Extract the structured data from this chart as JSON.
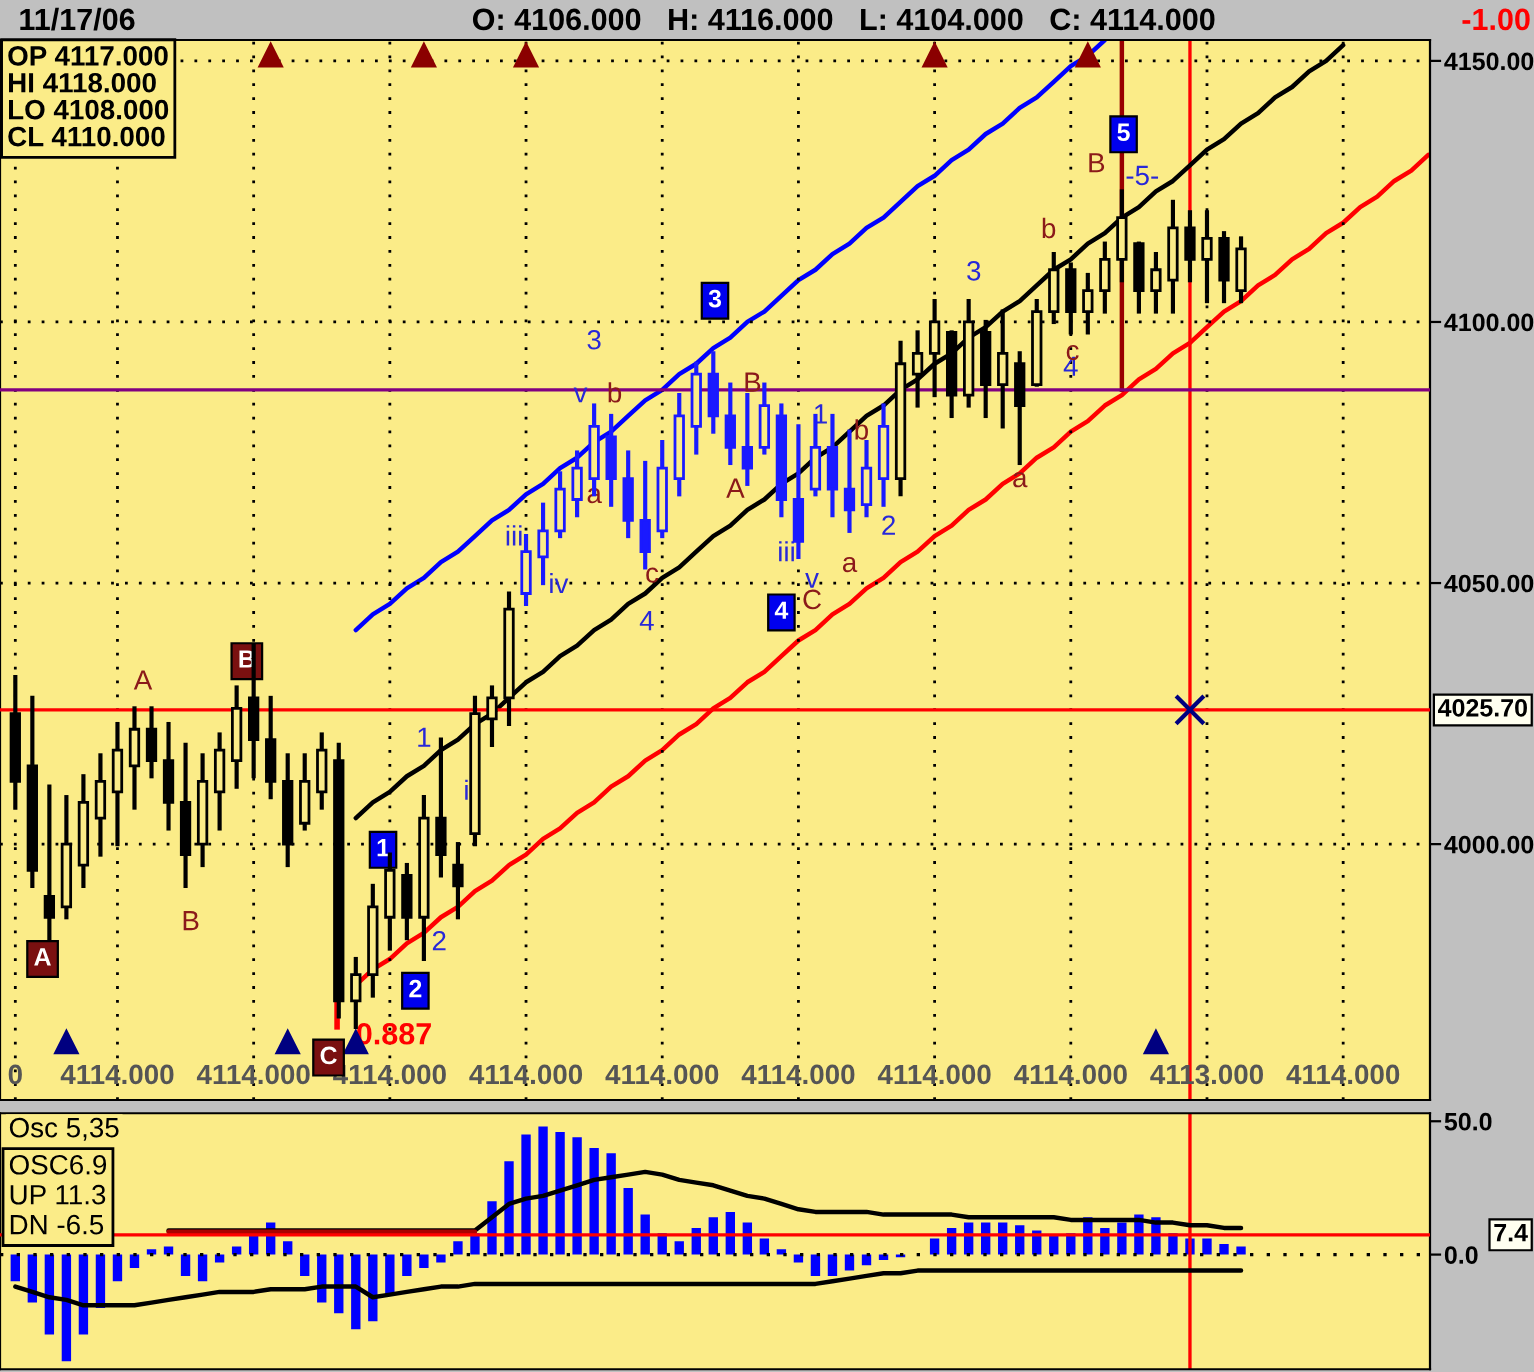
{
  "chart_data": [
    {
      "type": "candlestick",
      "title": "11/17/06",
      "subtitle": "O: 4106.000   H: 4116.000   L: 4104.000   C: 4114.000",
      "annotations": [
        "OP 4117.000\nHI 4118.000\nLO 4108.000\nCL 4110.000",
        "-1.00",
        "0.887",
        "1",
        "i",
        "2",
        "iii",
        "iv",
        "3",
        "v",
        "4",
        "iii",
        "v",
        "1",
        "2",
        "3",
        "4",
        "-5-",
        "A",
        "B",
        "a",
        "b",
        "c",
        "A",
        "B",
        "b",
        "a",
        "C",
        "a",
        "b",
        "c",
        "B",
        "1",
        "2",
        "3",
        "4",
        "5",
        "A",
        "B",
        "C"
      ],
      "categories": [
        "0",
        null,
        null,
        null,
        null,
        null,
        "4114.000",
        null,
        null,
        null,
        null,
        null,
        null,
        null,
        "4114.000",
        null,
        null,
        null,
        null,
        null,
        null,
        null,
        "4114.000",
        null,
        null,
        null,
        null,
        null,
        null,
        null,
        "4114.000",
        null,
        null,
        null,
        null,
        null,
        null,
        null,
        "4114.000",
        null,
        null,
        null,
        null,
        null,
        null,
        null,
        "4114.000",
        null,
        null,
        null,
        null,
        null,
        null,
        null,
        "4114.000",
        null,
        null,
        null,
        null,
        null,
        null,
        null,
        "4114.000",
        null,
        null,
        null,
        null,
        null,
        null,
        null,
        "4113.000",
        null,
        null,
        null,
        null,
        null,
        null,
        null,
        "4114.000",
        null,
        null,
        null,
        null,
        null
      ],
      "ohlc": [
        [
          4025,
          4032,
          4007,
          4012
        ],
        [
          4015,
          4028,
          3992,
          3995
        ],
        [
          3990,
          4011,
          3982,
          3986
        ],
        [
          3988,
          4009,
          3986,
          4000
        ],
        [
          3996,
          4013,
          3992,
          4008
        ],
        [
          4005,
          4017,
          3998,
          4012
        ],
        [
          4010,
          4023,
          4000,
          4018
        ],
        [
          4015,
          4026,
          4007,
          4022
        ],
        [
          4022,
          4026,
          4013,
          4016
        ],
        [
          4016,
          4023,
          4003,
          4008
        ],
        [
          4008,
          4019,
          3992,
          3998
        ],
        [
          4000,
          4017,
          3996,
          4012
        ],
        [
          4010,
          4021,
          4003,
          4018
        ],
        [
          4016,
          4030,
          4011,
          4026
        ],
        [
          4028,
          4038,
          4013,
          4020
        ],
        [
          4020,
          4028,
          4009,
          4012
        ],
        [
          4012,
          4017,
          3996,
          4000
        ],
        [
          4004,
          4017,
          4003,
          4012
        ],
        [
          4010,
          4021,
          4007,
          4018
        ],
        [
          4016,
          4019,
          3967,
          3970
        ],
        [
          3970,
          3978,
          3965,
          3975
        ],
        [
          3975,
          3992,
          3971,
          3988
        ],
        [
          3986,
          3998,
          3980,
          3995
        ],
        [
          3994,
          3996,
          3982,
          3986
        ],
        [
          3986,
          4009,
          3978,
          4005
        ],
        [
          4005,
          4020,
          3994,
          3998
        ],
        [
          3996,
          4000,
          3986,
          3992
        ],
        [
          4002,
          4028,
          4000,
          4025
        ],
        [
          4024,
          4030,
          4019,
          4028
        ],
        [
          4028,
          4048,
          4023,
          4045
        ],
        [
          4048,
          4059,
          4046,
          4056
        ],
        [
          4055,
          4065,
          4050,
          4060
        ],
        [
          4060,
          4071,
          4059,
          4068
        ],
        [
          4066,
          4075,
          4063,
          4072
        ],
        [
          4070,
          4084,
          4067,
          4080
        ],
        [
          4078,
          4082,
          4065,
          4070
        ],
        [
          4070,
          4075,
          4059,
          4062
        ],
        [
          4062,
          4073,
          4053,
          4056
        ],
        [
          4060,
          4077,
          4059,
          4072
        ],
        [
          4070,
          4086,
          4067,
          4082
        ],
        [
          4080,
          4092,
          4075,
          4090
        ],
        [
          4090,
          4094,
          4079,
          4082
        ],
        [
          4082,
          4088,
          4073,
          4076
        ],
        [
          4076,
          4086,
          4069,
          4072
        ],
        [
          4076,
          4088,
          4075,
          4084
        ],
        [
          4082,
          4084,
          4063,
          4066
        ],
        [
          4066,
          4080,
          4055,
          4058
        ],
        [
          4068,
          4082,
          4067,
          4076
        ],
        [
          4076,
          4082,
          4063,
          4068
        ],
        [
          4068,
          4079,
          4060,
          4064
        ],
        [
          4065,
          4077,
          4063,
          4072
        ],
        [
          4070,
          4084,
          4065,
          4080
        ],
        [
          4070,
          4096,
          4067,
          4092
        ],
        [
          4090,
          4098,
          4084,
          4094
        ],
        [
          4094,
          4104,
          4086,
          4100
        ],
        [
          4098,
          4098,
          4082,
          4086
        ],
        [
          4086,
          4104,
          4084,
          4100
        ],
        [
          4098,
          4100,
          4082,
          4088
        ],
        [
          4088,
          4102,
          4080,
          4094
        ],
        [
          4092,
          4094,
          4073,
          4084
        ],
        [
          4088,
          4104,
          4088,
          4102
        ],
        [
          4102,
          4113,
          4100,
          4110
        ],
        [
          4110,
          4111,
          4098,
          4102
        ],
        [
          4102,
          4109,
          4098,
          4106
        ],
        [
          4106,
          4115,
          4102,
          4112
        ],
        [
          4112,
          4125,
          4108,
          4120
        ],
        [
          4115,
          4115,
          4102,
          4106
        ],
        [
          4106,
          4113,
          4102,
          4110
        ],
        [
          4108,
          4123,
          4102,
          4118
        ],
        [
          4118,
          4121,
          4108,
          4112
        ],
        [
          4112,
          4121,
          4104,
          4116
        ],
        [
          4116,
          4117,
          4104,
          4108
        ],
        [
          4106,
          4116,
          4104,
          4114
        ],
        null,
        null,
        null,
        null,
        null,
        null,
        null,
        null,
        null,
        null,
        null
      ],
      "colors": [
        "#000000",
        "#000000",
        "#000000",
        "#000000",
        "#000000",
        "#000000",
        "#000000",
        "#000000",
        "#000000",
        "#000000",
        "#000000",
        "#000000",
        "#000000",
        "#000000",
        "#000000",
        "#000000",
        "#000000",
        "#000000",
        "#000000",
        "#000000",
        "#000000",
        "#000000",
        "#000000",
        "#000000",
        "#000000",
        "#000000",
        "#000000",
        "#000000",
        "#000000",
        "#000000",
        "#1a1aff",
        "#1a1aff",
        "#1a1aff",
        "#1a1aff",
        "#1a1aff",
        "#1a1aff",
        "#1a1aff",
        "#1a1aff",
        "#1a1aff",
        "#1a1aff",
        "#1a1aff",
        "#1a1aff",
        "#1a1aff",
        "#1a1aff",
        "#1a1aff",
        "#1a1aff",
        "#1a1aff",
        "#1a1aff",
        "#1a1aff",
        "#1a1aff",
        "#1a1aff",
        "#1a1aff",
        "#000000",
        "#000000",
        "#000000",
        "#000000",
        "#000000",
        "#000000",
        "#000000",
        "#000000",
        "#000000",
        "#000000",
        "#000000",
        "#000000",
        "#000000",
        "#000000",
        "#000000",
        "#000000",
        "#000000",
        "#000000",
        "#000000",
        "#000000",
        "#000000",
        null,
        null,
        null,
        null,
        null,
        null,
        null,
        null,
        null,
        null,
        null
      ],
      "series": [
        {
          "type": "line",
          "color": "#0000ff",
          "values": [
            null,
            null,
            null,
            null,
            null,
            null,
            null,
            null,
            null,
            null,
            null,
            null,
            null,
            null,
            null,
            null,
            null,
            null,
            null,
            null,
            4041,
            4044,
            4046,
            4049,
            4051,
            4054,
            4056,
            4059,
            4062,
            4064,
            4067,
            4069,
            4072,
            4074,
            4077,
            4079,
            4082,
            4085,
            4087,
            4090,
            4092,
            4095,
            4097,
            4100,
            4102,
            4105,
            4108,
            4110,
            4113,
            4115,
            4118,
            4120,
            4123,
            4126,
            4128,
            4131,
            4133,
            4136,
            4138,
            4141,
            4143,
            4146,
            4149,
            4151,
            4154,
            null,
            null,
            null,
            null,
            null,
            null,
            null,
            null,
            null,
            null,
            null,
            null,
            null,
            null,
            null,
            null,
            null,
            null,
            null
          ]
        },
        {
          "type": "line",
          "color": "#000000",
          "values": [
            null,
            null,
            null,
            null,
            null,
            null,
            null,
            null,
            null,
            null,
            null,
            null,
            null,
            null,
            null,
            null,
            null,
            null,
            null,
            null,
            4005,
            4008,
            4010,
            4013,
            4015,
            4018,
            4020,
            4023,
            4025,
            4028,
            4031,
            4033,
            4036,
            4038,
            4041,
            4043,
            4046,
            4048,
            4051,
            4053,
            4056,
            4059,
            4061,
            4064,
            4066,
            4069,
            4071,
            4074,
            4076,
            4079,
            4082,
            4084,
            4087,
            4089,
            4092,
            4094,
            4097,
            4099,
            4102,
            4104,
            4107,
            4110,
            4112,
            4115,
            4117,
            4120,
            4122,
            4125,
            4127,
            4130,
            4133,
            4135,
            4138,
            4140,
            4143,
            4145,
            4148,
            4150,
            4153,
            null,
            null,
            null,
            null,
            null
          ]
        },
        {
          "type": "line",
          "color": "#ff0000",
          "values": [
            null,
            null,
            null,
            null,
            null,
            null,
            null,
            null,
            null,
            null,
            null,
            null,
            null,
            null,
            null,
            null,
            null,
            null,
            null,
            null,
            3973,
            3976,
            3978,
            3981,
            3983,
            3986,
            3988,
            3991,
            3993,
            3996,
            3998,
            4001,
            4003,
            4006,
            4008,
            4011,
            4013,
            4016,
            4018,
            4021,
            4023,
            4026,
            4028,
            4031,
            4033,
            4036,
            4039,
            4041,
            4044,
            4046,
            4049,
            4051,
            4054,
            4056,
            4059,
            4061,
            4064,
            4066,
            4069,
            4071,
            4074,
            4076,
            4079,
            4081,
            4084,
            4086,
            4089,
            4091,
            4094,
            4096,
            4099,
            4102,
            4104,
            4107,
            4109,
            4112,
            4114,
            4117,
            4119,
            4122,
            4124,
            4127,
            4129,
            4132
          ]
        },
        {
          "type": "scatter",
          "marker": "cross",
          "color": "#000080",
          "values": [
            null,
            null,
            null,
            null,
            null,
            null,
            null,
            null,
            null,
            null,
            null,
            null,
            null,
            null,
            null,
            null,
            null,
            null,
            null,
            null,
            null,
            null,
            null,
            null,
            null,
            null,
            null,
            null,
            null,
            null,
            null,
            null,
            null,
            null,
            null,
            null,
            null,
            null,
            null,
            null,
            null,
            null,
            null,
            null,
            null,
            null,
            null,
            null,
            null,
            null,
            null,
            null,
            null,
            null,
            null,
            null,
            null,
            null,
            null,
            null,
            null,
            null,
            null,
            null,
            null,
            null,
            null,
            null,
            null,
            4025.7,
            null,
            null,
            null,
            null,
            null,
            null,
            null,
            null,
            null,
            null,
            null,
            null,
            null,
            null
          ]
        },
        {
          "type": "scatter",
          "marker": "triangle",
          "color": "#8b0000",
          "values": [
            null,
            null,
            null,
            null,
            null,
            null,
            null,
            null,
            null,
            null,
            null,
            null,
            null,
            null,
            null,
            4151,
            null,
            null,
            null,
            null,
            null,
            null,
            null,
            null,
            4151,
            null,
            null,
            null,
            null,
            null,
            4151,
            null,
            null,
            null,
            null,
            null,
            null,
            null,
            null,
            null,
            null,
            null,
            null,
            null,
            null,
            null,
            null,
            null,
            null,
            null,
            null,
            null,
            null,
            null,
            4151,
            null,
            null,
            null,
            null,
            null,
            null,
            null,
            null,
            4151,
            null,
            null,
            null,
            null,
            null,
            null,
            null,
            null,
            null,
            null,
            null,
            null,
            null,
            null,
            null,
            null,
            null,
            null,
            null,
            null
          ]
        },
        {
          "type": "scatter",
          "marker": "triangle",
          "color": "#000080",
          "values": [
            null,
            null,
            null,
            3962,
            null,
            null,
            null,
            null,
            null,
            null,
            null,
            null,
            null,
            null,
            null,
            null,
            3962,
            null,
            null,
            null,
            3962,
            null,
            null,
            null,
            null,
            null,
            null,
            null,
            null,
            null,
            null,
            null,
            null,
            null,
            null,
            null,
            null,
            null,
            null,
            null,
            null,
            null,
            null,
            null,
            null,
            null,
            null,
            null,
            null,
            null,
            null,
            null,
            null,
            null,
            null,
            null,
            null,
            null,
            null,
            null,
            null,
            null,
            null,
            null,
            null,
            null,
            null,
            3962,
            null,
            null,
            null,
            null,
            null,
            null,
            null,
            null,
            null,
            null,
            null,
            null,
            null,
            null,
            null,
            null
          ]
        }
      ],
      "ylim": [
        3951,
        4154
      ],
      "yticks": [
        {
          "value": 4000,
          "label": "4000.00"
        },
        {
          "value": 4050,
          "label": "4050.00"
        },
        {
          "value": 4100,
          "label": "4100.00"
        },
        {
          "value": 4150,
          "label": "4150.00"
        }
      ],
      "ref_lines": [
        {
          "axis": "y",
          "value": 4087,
          "color": "#800080"
        },
        {
          "axis": "y",
          "value": 4025.7,
          "label": "4025.70",
          "color": "#ff0000"
        }
      ],
      "grid": true
    },
    {
      "type": "bar",
      "title": "Osc 5,35",
      "annotations": [
        "OSC6.9\nUP 11.3\nDN -6.5"
      ],
      "categories": [
        null,
        null,
        null,
        null,
        null,
        null,
        null,
        null,
        null,
        null,
        null,
        null,
        null,
        null,
        null,
        null,
        null,
        null,
        null,
        null,
        null,
        null,
        null,
        null,
        null,
        null,
        null,
        null,
        null,
        null,
        null,
        null,
        null,
        null,
        null,
        null,
        null,
        null,
        null,
        null,
        null,
        null,
        null,
        null,
        null,
        null,
        null,
        null,
        null,
        null,
        null,
        null,
        null,
        null,
        null,
        null,
        null,
        null,
        null,
        null,
        null,
        null,
        null,
        null,
        null,
        null,
        null,
        null,
        null,
        null,
        null,
        null,
        null,
        null,
        null,
        null,
        null,
        null,
        null,
        null,
        null,
        null,
        null,
        null
      ],
      "series": [
        {
          "color": "#0000ff",
          "values": [
            -10,
            -18,
            -30,
            -40,
            -30,
            -20,
            -10,
            -5,
            2,
            3,
            -8,
            -10,
            -3,
            3,
            8,
            12,
            5,
            -8,
            -18,
            -22,
            -28,
            -25,
            -15,
            -8,
            -5,
            -3,
            5,
            8,
            20,
            35,
            45,
            48,
            46,
            44,
            40,
            38,
            25,
            15,
            8,
            5,
            10,
            14,
            16,
            12,
            6,
            2,
            -3,
            -8,
            -8,
            -6,
            -4,
            -2,
            -1,
            0,
            6,
            10,
            12,
            12,
            12,
            11,
            9,
            7,
            8,
            14,
            10,
            12,
            15,
            14,
            8,
            6,
            6,
            4,
            3,
            null,
            null,
            null,
            null,
            null,
            null,
            null,
            null,
            null,
            null,
            null
          ]
        },
        {
          "type": "line",
          "color": "#000000",
          "values": [
            null,
            null,
            null,
            null,
            null,
            null,
            null,
            null,
            null,
            9,
            9,
            9,
            9,
            9,
            9,
            9,
            9,
            9,
            9,
            9,
            9,
            9,
            9,
            9,
            9,
            9,
            9,
            9,
            14,
            19,
            21,
            22,
            24,
            26,
            28,
            29,
            30,
            31,
            30,
            28,
            27,
            26,
            24,
            22,
            21,
            19,
            17,
            16,
            16,
            16,
            16,
            15,
            15,
            15,
            15,
            15,
            14,
            14,
            14,
            14,
            14,
            14,
            13,
            13,
            13,
            13,
            13,
            12,
            12,
            11,
            11,
            10,
            10,
            null,
            null,
            null,
            null,
            null,
            null,
            null,
            null,
            null,
            null,
            null
          ]
        },
        {
          "type": "line",
          "color": "#000000",
          "values": [
            -12,
            -14,
            -16,
            -17,
            -19,
            -19,
            -19,
            -19,
            -18,
            -17,
            -16,
            -15,
            -14,
            -14,
            -14,
            -13,
            -13,
            -13,
            -12,
            -12,
            -12,
            -16,
            -15,
            -14,
            -13,
            -12,
            -12,
            -11,
            -11,
            -11,
            -11,
            -11,
            -11,
            -11,
            -11,
            -11,
            -11,
            -11,
            -11,
            -11,
            -11,
            -11,
            -11,
            -11,
            -11,
            -11,
            -11,
            -11,
            -10,
            -9,
            -8,
            -7,
            -7,
            -6,
            -6,
            -6,
            -6,
            -6,
            -6,
            -6,
            -6,
            -6,
            -6,
            -6,
            -6,
            -6,
            -6,
            -6,
            -6,
            -6,
            -6,
            -6,
            -6,
            null,
            null,
            null,
            null,
            null,
            null,
            null,
            null,
            null,
            null,
            null
          ]
        },
        {
          "type": "line",
          "color": "#aa0000",
          "values": [
            null,
            null,
            null,
            null,
            null,
            null,
            null,
            null,
            null,
            8.6,
            8.6,
            8.6,
            8.6,
            8.6,
            8.6,
            8.6,
            8.6,
            8.6,
            8.6,
            8.6,
            8.6,
            8.6,
            8.6,
            8.6,
            8.6,
            8.6,
            8.6,
            8.6,
            null,
            null,
            null,
            null,
            null,
            null,
            null,
            null,
            null,
            null,
            null,
            null,
            null,
            null,
            null,
            null,
            null,
            null,
            null,
            null,
            null,
            null,
            null,
            null,
            null,
            null,
            null,
            null,
            null,
            null,
            null,
            null,
            null,
            null,
            null,
            null,
            null,
            null,
            null,
            null,
            null,
            null,
            null,
            null,
            null,
            null,
            null,
            null,
            null,
            null,
            null,
            null,
            null,
            null,
            null,
            null
          ]
        }
      ],
      "ylim": [
        -43,
        53
      ],
      "yticks": [
        {
          "value": 0,
          "label": "0.0"
        },
        {
          "value": 50,
          "label": "50.0"
        }
      ],
      "ref_lines": [
        {
          "axis": "y",
          "value": 7.4,
          "label": "7.4",
          "color": "#ff0000"
        },
        {
          "axis": "y",
          "value": 0,
          "color": "#000000",
          "line_style": "dotted"
        }
      ],
      "tick_labels": "y"
    }
  ]
}
